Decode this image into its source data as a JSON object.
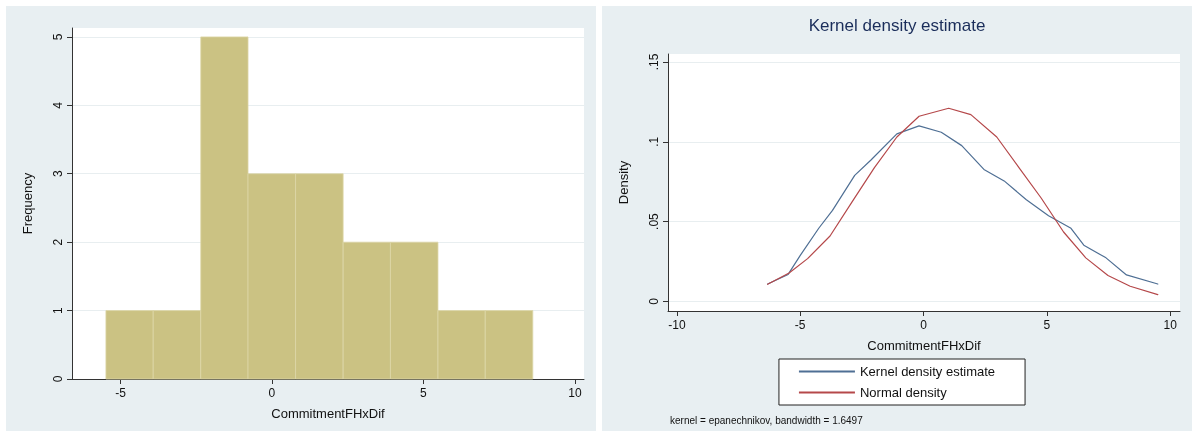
{
  "chart_data": [
    {
      "type": "histogram",
      "xlabel": "CommitmentFHxDif",
      "ylabel": "Frequency",
      "color": "#cbc283",
      "bins": [
        -5.48,
        -3.92,
        -2.35,
        -0.79,
        0.78,
        2.35,
        3.91,
        5.48,
        7.04,
        8.61
      ],
      "values": [
        1,
        1,
        5,
        3,
        3,
        2,
        2,
        1,
        1
      ],
      "xlim": [
        -6.6,
        10.3
      ],
      "xticks": [
        -5,
        0,
        5,
        10
      ],
      "ylim": [
        0,
        5.13
      ],
      "yticks": [
        0,
        1,
        2,
        3,
        4,
        5
      ],
      "grid": "y",
      "legend": false
    },
    {
      "type": "line",
      "title": "Kernel density estimate",
      "xlabel": "CommitmentFHxDif",
      "ylabel": "Density",
      "marker": "none",
      "line_style": "solid",
      "xlim": [
        -10.36,
        10.4
      ],
      "xticks": [
        -10,
        -5,
        0,
        5,
        10
      ],
      "ylim": [
        -0.006,
        0.155
      ],
      "yticks": [
        {
          "value": 0,
          "label": "0"
        },
        {
          "value": 0.05,
          "label": ".05"
        },
        {
          "value": 0.1,
          "label": ".1"
        },
        {
          "value": 0.15,
          "label": ".15"
        }
      ],
      "grid": "y",
      "legend": "bottom",
      "series": [
        {
          "name": "Kernel density estimate",
          "color": "#4f6f94",
          "x": [
            -6.32,
            -5.49,
            -4.99,
            -4.24,
            -3.69,
            -2.79,
            -2.13,
            -1.08,
            -0.18,
            0.72,
            1.55,
            2.45,
            3.27,
            4.17,
            5.07,
            5.98,
            6.5,
            7.4,
            8.23,
            9.5
          ],
          "values": [
            0.0109,
            0.0169,
            0.029,
            0.046,
            0.057,
            0.079,
            0.0886,
            0.105,
            0.11,
            0.106,
            0.0976,
            0.0827,
            0.0755,
            0.0637,
            0.0537,
            0.0458,
            0.0352,
            0.0273,
            0.0166,
            0.0109
          ]
        },
        {
          "name": "Normal density",
          "color": "#b5484a",
          "x": [
            -6.32,
            -5.45,
            -4.7,
            -3.79,
            -2.89,
            -1.99,
            -1.08,
            -0.18,
            1.02,
            1.92,
            2.97,
            3.87,
            4.77,
            5.68,
            6.58,
            7.48,
            8.38,
            9.5
          ],
          "values": [
            0.0107,
            0.0178,
            0.0268,
            0.041,
            0.0625,
            0.0838,
            0.103,
            0.116,
            0.121,
            0.117,
            0.103,
            0.0838,
            0.0648,
            0.0435,
            0.0273,
            0.0162,
            0.0095,
            0.0043
          ]
        }
      ],
      "annotations": [
        "kernel = epanechnikov, bandwidth = 1.6497"
      ]
    }
  ]
}
